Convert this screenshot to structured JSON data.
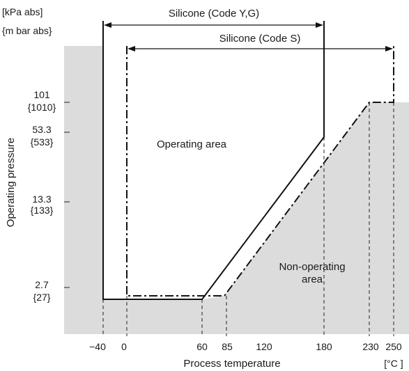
{
  "units": {
    "pressure_kpa": "[kPa  abs]",
    "pressure_mbar": "{m bar abs}",
    "temperature": "[°C ]"
  },
  "axes": {
    "y_title": "Operating  pressure",
    "x_title": "Process temperature"
  },
  "y_ticks": [
    {
      "kpa": "101",
      "mbar": "{1010}"
    },
    {
      "kpa": "53.3",
      "mbar": "{533}"
    },
    {
      "kpa": "13.3",
      "mbar": "{133}"
    },
    {
      "kpa": "2.7",
      "mbar": "{27}"
    }
  ],
  "x_ticks": [
    "−40",
    "0",
    "60",
    "85",
    "120",
    "180",
    "230",
    "250"
  ],
  "ranges": {
    "code_ygs": "Silicone (Code Y,G)",
    "code_s": "Silicone (Code S)"
  },
  "regions": {
    "operating": "Operating area",
    "non_operating_1": "Non-operating",
    "non_operating_2": "area"
  },
  "chart_data": {
    "type": "line",
    "xlabel": "Process temperature",
    "ylabel": "Operating  pressure",
    "x_unit": "[°C ]",
    "y_unit": "[kPa  abs] {m bar abs}",
    "x_ticks": [
      -40,
      0,
      60,
      85,
      120,
      180,
      230,
      250
    ],
    "y_ticks_kpa": [
      2.7,
      13.3,
      53.3,
      101
    ],
    "series": [
      {
        "name": "Silicone (Code Y,G)",
        "style": "solid",
        "x_range": [
          -40,
          180
        ],
        "points": [
          [
            -40,
            2.7
          ],
          [
            60,
            2.7
          ],
          [
            180,
            53.3
          ]
        ]
      },
      {
        "name": "Silicone (Code S)",
        "style": "dash-dot",
        "x_range": [
          0,
          250
        ],
        "points": [
          [
            0,
            2.7
          ],
          [
            85,
            2.7
          ],
          [
            230,
            101
          ],
          [
            250,
            101
          ]
        ]
      }
    ],
    "regions": [
      "Operating area",
      "Non-operating area"
    ]
  },
  "colors": {
    "non_operating_fill": "#dcdcdc",
    "line": "#111111"
  }
}
